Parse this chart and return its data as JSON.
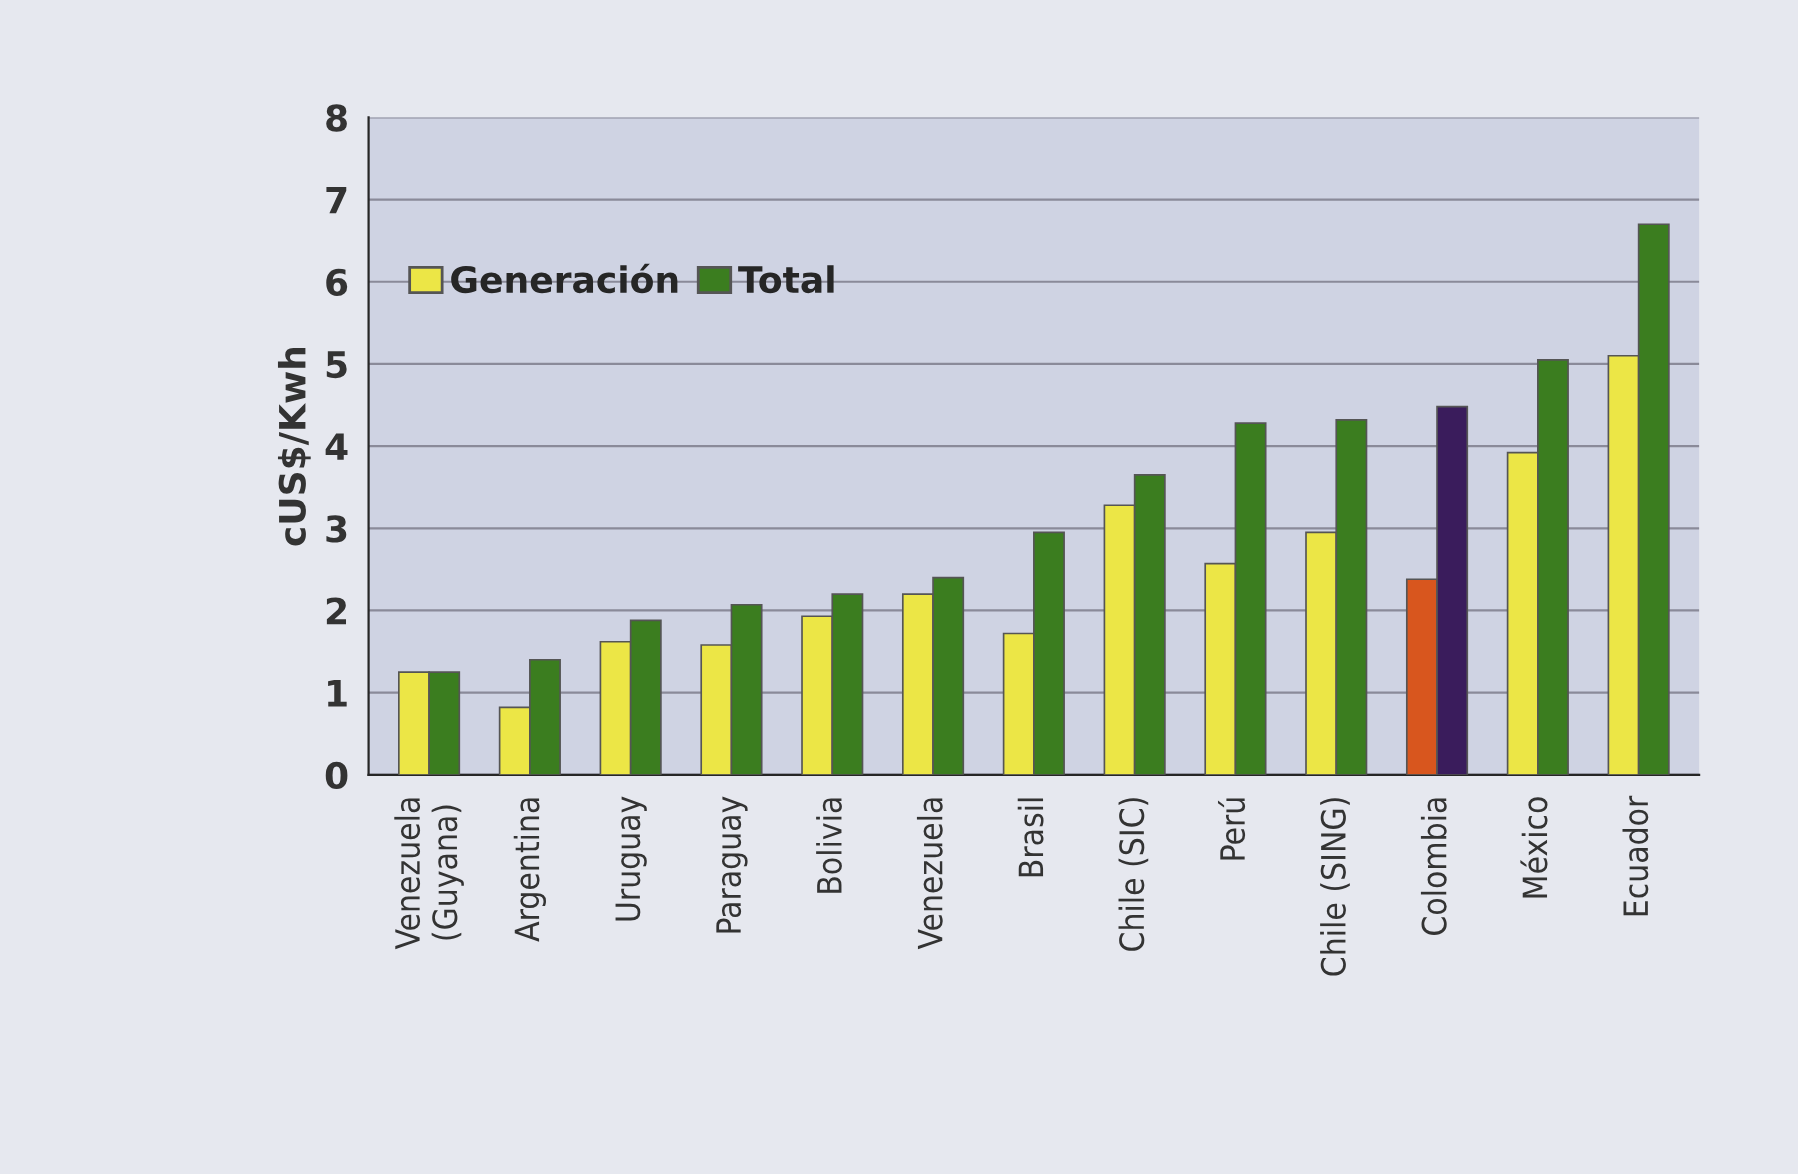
{
  "chart_data": {
    "type": "bar",
    "ylabel": "cUS$/Kwh",
    "categories": [
      "Venezuela\n(Guyana)",
      "Argentina",
      "Uruguay",
      "Paraguay",
      "Bolivia",
      "Venezuela",
      "Brasil",
      "Chile (SIC)",
      "Perú",
      "Chile (SING)",
      "Colombia",
      "México",
      "Ecuador"
    ],
    "series": [
      {
        "name": "Generación",
        "color": "#ece646",
        "colors": [
          "#ece646",
          "#ece646",
          "#ece646",
          "#ece646",
          "#ece646",
          "#ece646",
          "#ece646",
          "#ece646",
          "#ece646",
          "#ece646",
          "#d8561e",
          "#ece646",
          "#ece646"
        ],
        "values": [
          1.25,
          0.82,
          1.62,
          1.58,
          1.93,
          2.2,
          1.72,
          3.28,
          2.57,
          2.95,
          2.38,
          3.92,
          5.1
        ]
      },
      {
        "name": "Total",
        "color": "#3b7d1f",
        "colors": [
          "#3b7d1f",
          "#3b7d1f",
          "#3b7d1f",
          "#3b7d1f",
          "#3b7d1f",
          "#3b7d1f",
          "#3b7d1f",
          "#3b7d1f",
          "#3b7d1f",
          "#3b7d1f",
          "#3a1c5c",
          "#3b7d1f",
          "#3b7d1f"
        ],
        "values": [
          1.25,
          1.4,
          1.88,
          2.07,
          2.2,
          2.4,
          2.95,
          3.65,
          4.28,
          4.32,
          4.48,
          5.05,
          6.7
        ]
      }
    ],
    "ylim": [
      0,
      8
    ],
    "yticks": [
      0,
      1,
      2,
      3,
      4,
      5,
      6,
      7,
      8
    ],
    "grid": "y",
    "legend": "top left"
  }
}
